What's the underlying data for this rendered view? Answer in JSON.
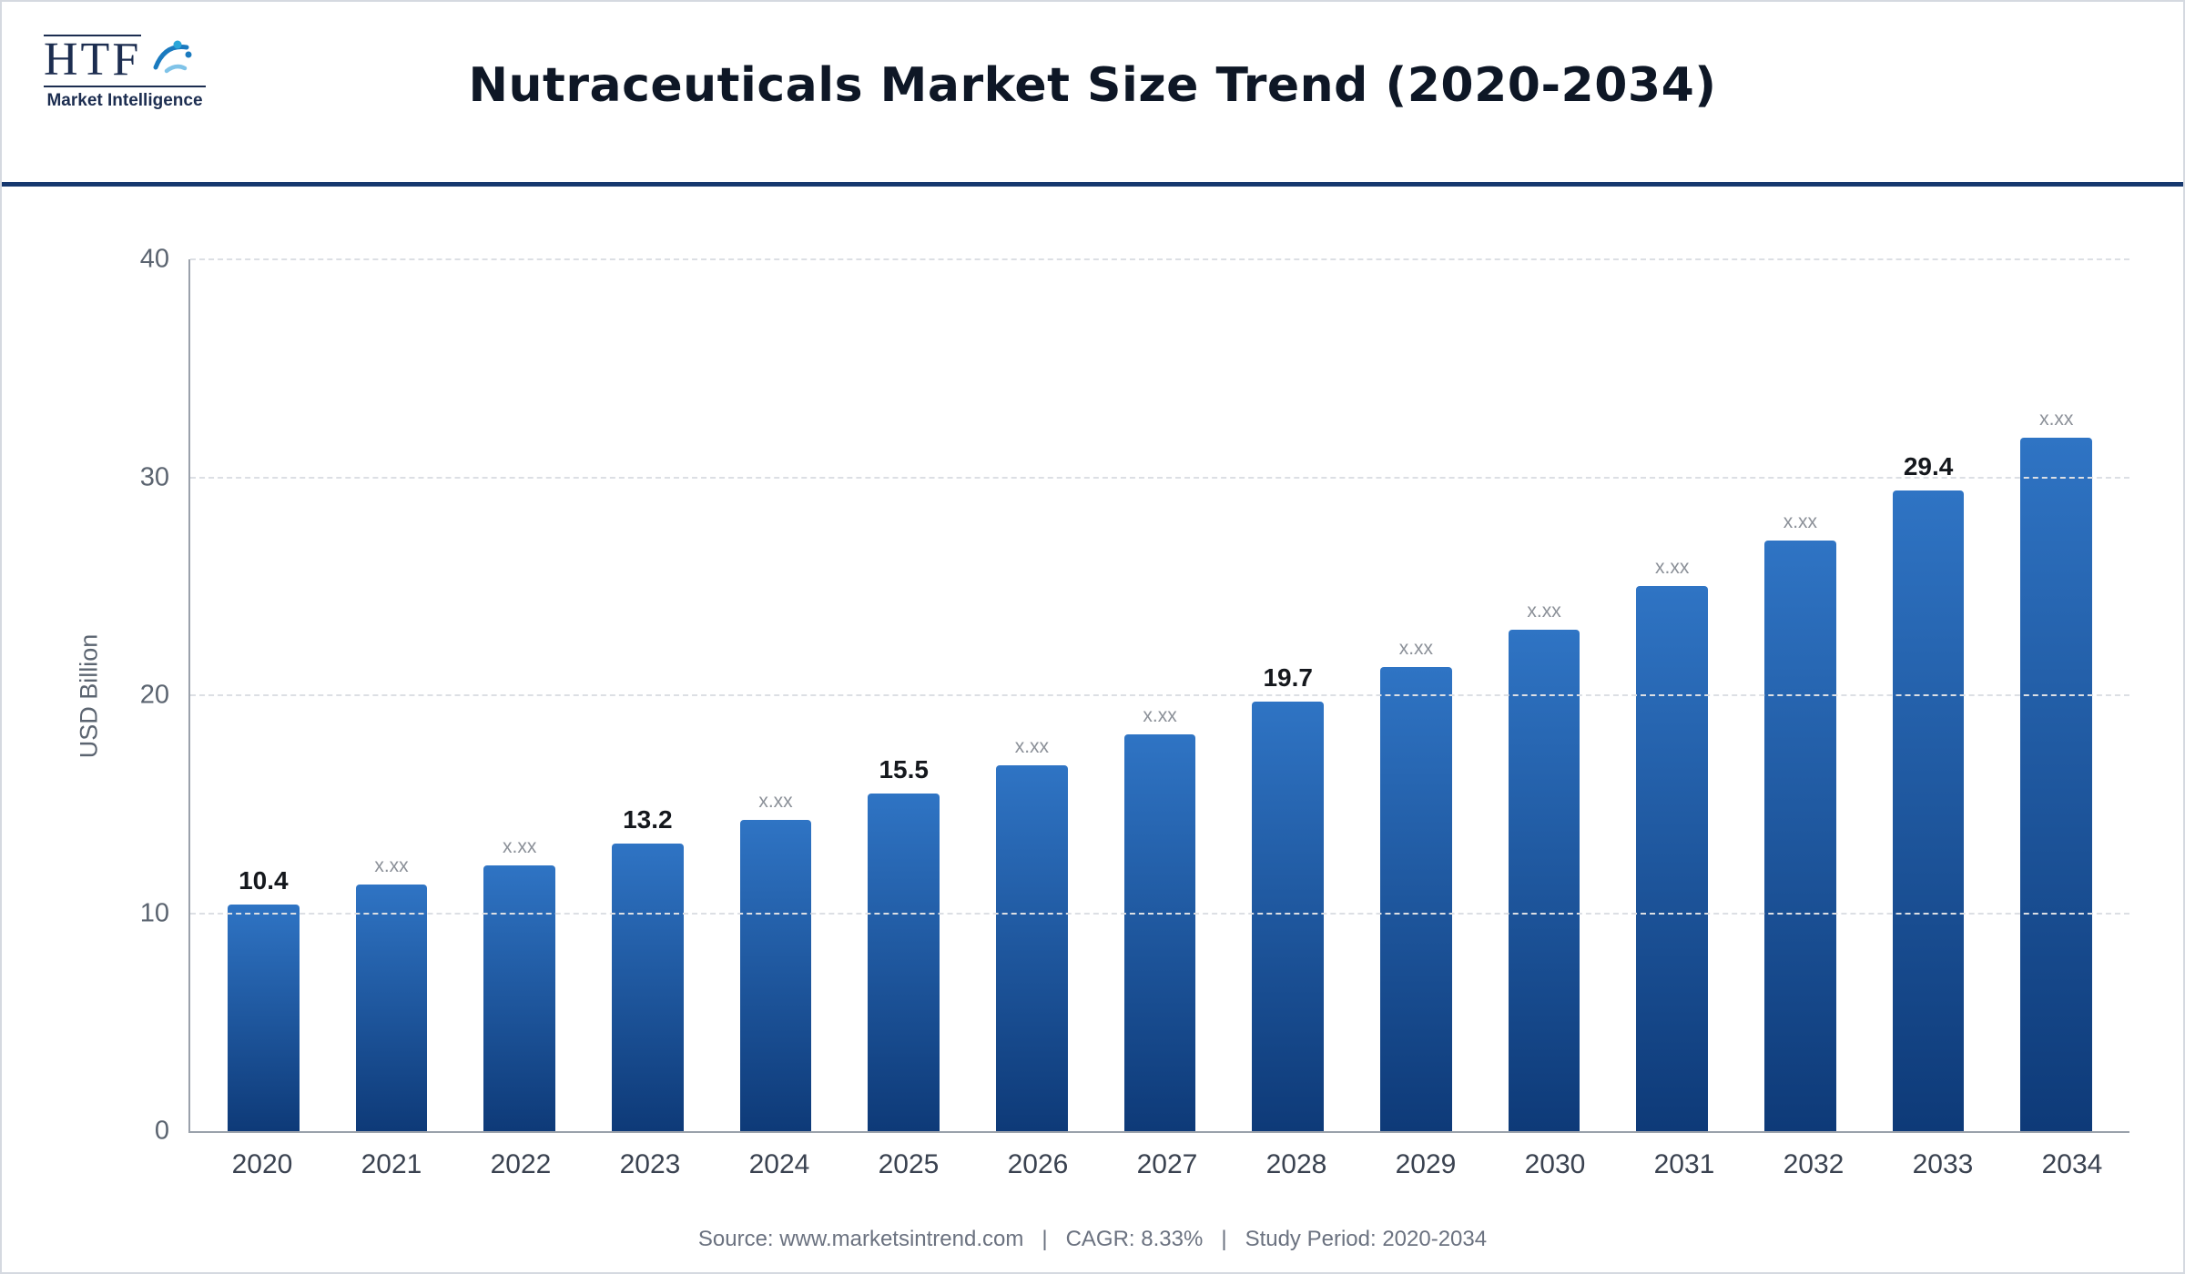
{
  "header": {
    "title": "Nutraceuticals Market Size Trend (2020-2034)",
    "logo": {
      "brand": "HTF",
      "subtitle": "Market Intelligence"
    }
  },
  "chart_data": {
    "type": "bar",
    "title": "Nutraceuticals Market Size Trend (2020-2034)",
    "xlabel": "",
    "ylabel": "USD Billion",
    "ylim": [
      0,
      40
    ],
    "yticks": [
      0,
      10,
      20,
      30,
      40
    ],
    "grid": true,
    "legend": false,
    "categories": [
      "2020",
      "2021",
      "2022",
      "2023",
      "2024",
      "2025",
      "2026",
      "2027",
      "2028",
      "2029",
      "2030",
      "2031",
      "2032",
      "2033",
      "2034"
    ],
    "values": [
      10.4,
      11.3,
      12.2,
      13.2,
      14.3,
      15.5,
      16.8,
      18.2,
      19.7,
      21.3,
      23.0,
      25.0,
      27.1,
      29.4,
      31.8
    ],
    "bar_labels": [
      "10.4",
      "x.xx",
      "x.xx",
      "13.2",
      "x.xx",
      "15.5",
      "x.xx",
      "x.xx",
      "19.7",
      "x.xx",
      "x.xx",
      "x.xx",
      "x.xx",
      "29.4",
      "x.xx"
    ],
    "bar_color_top": "#2f74c4",
    "bar_color_bottom": "#0e3a78"
  },
  "footer": {
    "source": "Source: www.marketsintrend.com",
    "cagr": "CAGR: 8.33%",
    "period": "Study Period: 2020-2034",
    "separator": "|"
  },
  "colors": {
    "divider": "#16386f",
    "title_color": "#0e1726"
  }
}
